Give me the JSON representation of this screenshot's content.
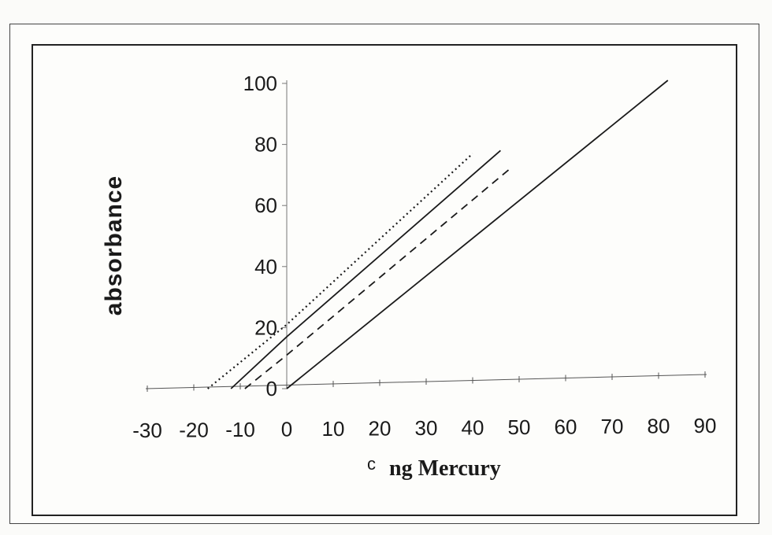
{
  "chart_data": {
    "type": "line",
    "title": "",
    "ylabel": "absorbance",
    "xlabel_prefix": "c",
    "xlabel": "ng Mercury",
    "xlim": [
      -30,
      90
    ],
    "ylim": [
      0,
      100
    ],
    "x_ticks": [
      -30,
      -20,
      -10,
      0,
      10,
      20,
      30,
      40,
      50,
      60,
      70,
      80,
      90
    ],
    "y_ticks": [
      0,
      20,
      40,
      60,
      80,
      100
    ],
    "grid": false,
    "series": [
      {
        "style": "dotted",
        "color": "#1a1a1a",
        "points": [
          [
            -17,
            0
          ],
          [
            0,
            21
          ],
          [
            40,
            77
          ]
        ]
      },
      {
        "style": "solid",
        "color": "#1a1a1a",
        "points": [
          [
            -12,
            0
          ],
          [
            0,
            17
          ],
          [
            46,
            78
          ]
        ]
      },
      {
        "style": "dashed",
        "color": "#1a1a1a",
        "points": [
          [
            -9,
            0
          ],
          [
            0,
            11
          ],
          [
            48,
            72
          ]
        ]
      },
      {
        "style": "solid",
        "color": "#1a1a1a",
        "points": [
          [
            0,
            0
          ],
          [
            82,
            101
          ]
        ]
      }
    ]
  }
}
